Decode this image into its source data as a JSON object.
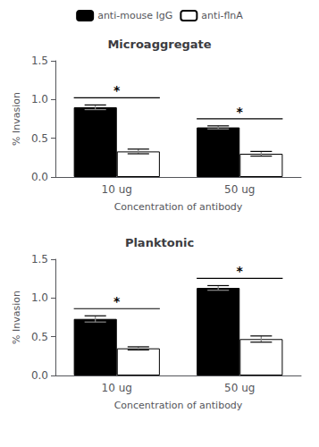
{
  "chart_data": [
    {
      "type": "bar",
      "title": "Microaggregate",
      "categories": [
        "10 ug",
        "50 ug"
      ],
      "series": [
        {
          "name": "anti-mouse IgG",
          "color": "#000000",
          "values": [
            0.9,
            0.64
          ],
          "errors": [
            0.03,
            0.02
          ]
        },
        {
          "name": "anti-flnA",
          "color": "#ffffff",
          "values": [
            0.33,
            0.3
          ],
          "errors": [
            0.03,
            0.03
          ]
        }
      ],
      "xlabel": "Concentration of antibody",
      "ylabel": "% Invasion",
      "ylim": [
        0.0,
        1.5
      ],
      "yticks": [
        {
          "value": 0.0,
          "label": "0.0"
        },
        0.5,
        {
          "value": 1.0,
          "label": "1.0"
        },
        1.5
      ],
      "annotations": [
        {
          "x": "10 ug",
          "text": "*"
        },
        {
          "x": "50 ug",
          "text": "*"
        }
      ],
      "grid": false,
      "legend": "top"
    },
    {
      "type": "bar",
      "title": "Planktonic",
      "categories": [
        "10 ug",
        "50 ug"
      ],
      "series": [
        {
          "name": "anti-mouse IgG",
          "color": "#000000",
          "values": [
            0.73,
            1.13
          ],
          "errors": [
            0.04,
            0.03
          ]
        },
        {
          "name": "anti-flnA",
          "color": "#ffffff",
          "values": [
            0.35,
            0.47
          ],
          "errors": [
            0.02,
            0.04
          ]
        }
      ],
      "xlabel": "Concentration of antibody",
      "ylabel": "% Invasion",
      "ylim": [
        0.0,
        1.5
      ],
      "yticks": [
        {
          "value": 0.0,
          "label": "0.0"
        },
        0.5,
        {
          "value": 1.0,
          "label": "1.0"
        },
        1.5
      ],
      "annotations": [
        {
          "x": "10 ug",
          "text": "*"
        },
        {
          "x": "50 ug",
          "text": "*"
        }
      ],
      "grid": false,
      "legend": "top"
    }
  ]
}
